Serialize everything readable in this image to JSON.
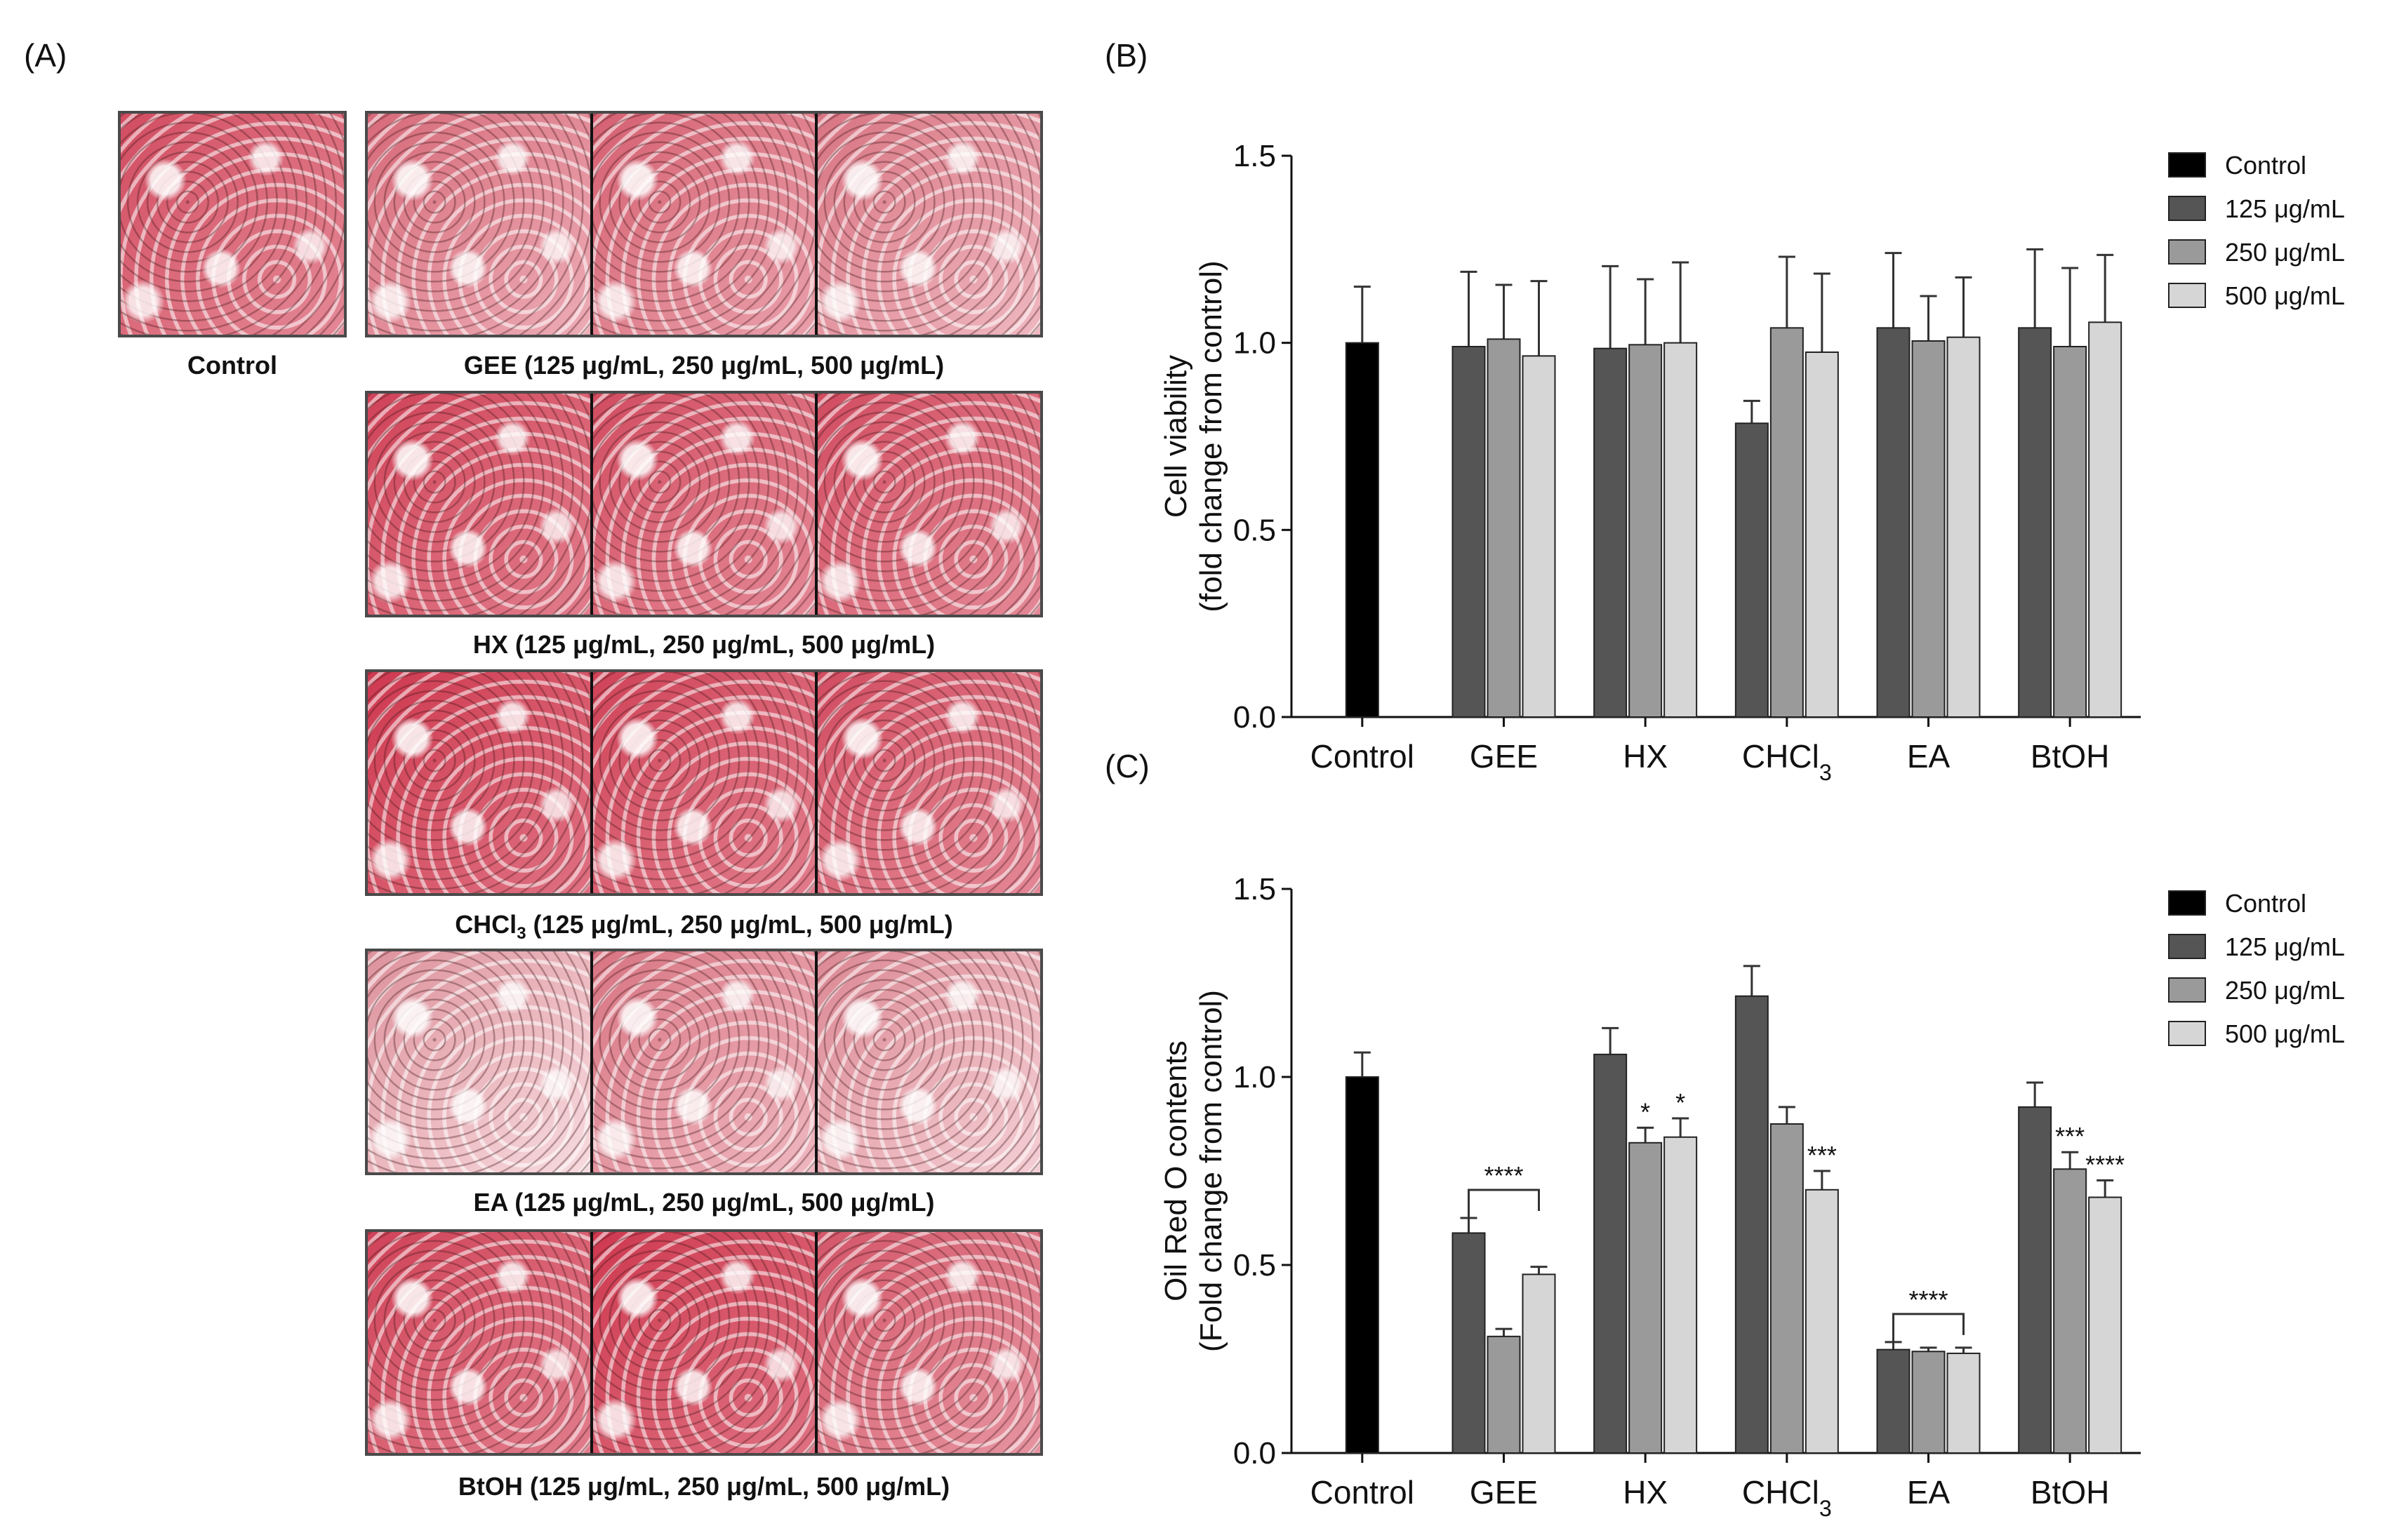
{
  "panels": {
    "A": {
      "label": "(A)",
      "control_caption": "Control",
      "rows": [
        {
          "caption": "GEE (125 μg/mL, 250 μg/mL, 500 μg/mL)",
          "stain": [
            0.55,
            0.6,
            0.5
          ]
        },
        {
          "caption": "HX (125 μg/mL, 250 μg/mL, 500 μg/mL)",
          "stain": [
            0.75,
            0.7,
            0.7
          ]
        },
        {
          "caption": "CHCl3 (125 μg/mL, 250 μg/mL, 500 μg/mL)",
          "stain": [
            0.8,
            0.75,
            0.7
          ]
        },
        {
          "caption": "EA (125 μg/mL, 250 μg/mL, 500 μg/mL)",
          "stain": [
            0.35,
            0.5,
            0.4
          ]
        },
        {
          "caption": "BtOH (125 μg/mL, 250 μg/mL, 500 μg/mL)",
          "stain": [
            0.75,
            0.8,
            0.65
          ]
        }
      ],
      "control_stain": 0.7
    },
    "B": {
      "label": "(B)"
    },
    "C": {
      "label": "(C)"
    }
  },
  "colors": {
    "control": "#000000",
    "c125": "#555555",
    "c250": "#9a9a9a",
    "c500": "#d6d6d6",
    "stain_red": "#c8102e",
    "stain_light": "#e8d8d8"
  },
  "chart_data": [
    {
      "type": "bar",
      "panel": "B",
      "ylabel": "Cell viability",
      "ylabel2": "(fold change from control)",
      "xlabel": "",
      "ylim": [
        0,
        1.5
      ],
      "yticks": [
        "0.0",
        "0.5",
        "1.0",
        "1.5"
      ],
      "categories": [
        "Control",
        "GEE",
        "HX",
        "CHCl3",
        "EA",
        "BtOH"
      ],
      "legend": [
        "Control",
        "125 μg/mL",
        "250 μg/mL",
        "500 μg/mL"
      ],
      "legend_position": "top-right",
      "series": [
        {
          "name": "Control",
          "values": [
            1.0,
            null,
            null,
            null,
            null,
            null
          ],
          "errors": [
            0.15,
            null,
            null,
            null,
            null,
            null
          ]
        },
        {
          "name": "125 μg/mL",
          "values": [
            null,
            0.99,
            0.985,
            0.785,
            1.04,
            1.04
          ],
          "errors": [
            null,
            0.2,
            0.22,
            0.06,
            0.2,
            0.21
          ]
        },
        {
          "name": "250 μg/mL",
          "values": [
            null,
            1.01,
            0.995,
            1.04,
            1.005,
            0.99
          ],
          "errors": [
            null,
            0.145,
            0.175,
            0.19,
            0.12,
            0.21
          ]
        },
        {
          "name": "500 μg/mL",
          "values": [
            null,
            0.965,
            1.0,
            0.975,
            1.015,
            1.055
          ],
          "errors": [
            null,
            0.2,
            0.215,
            0.21,
            0.16,
            0.18
          ]
        }
      ],
      "annotations": []
    },
    {
      "type": "bar",
      "panel": "C",
      "ylabel": "Oil Red O contents",
      "ylabel2": "(Fold change from control)",
      "xlabel": "",
      "ylim": [
        0,
        1.5
      ],
      "yticks": [
        "0.0",
        "0.5",
        "1.0",
        "1.5"
      ],
      "categories": [
        "Control",
        "GEE",
        "HX",
        "CHCl3",
        "EA",
        "BtOH"
      ],
      "legend": [
        "Control",
        "125 μg/mL",
        "250 μg/mL",
        "500 μg/mL"
      ],
      "legend_position": "top-right",
      "series": [
        {
          "name": "Control",
          "values": [
            1.0,
            null,
            null,
            null,
            null,
            null
          ],
          "errors": [
            0.065,
            null,
            null,
            null,
            null,
            null
          ]
        },
        {
          "name": "125 μg/mL",
          "values": [
            null,
            0.585,
            1.06,
            1.215,
            0.275,
            0.92
          ],
          "errors": [
            null,
            0.04,
            0.07,
            0.08,
            0.02,
            0.065
          ]
        },
        {
          "name": "250 μg/mL",
          "values": [
            null,
            0.31,
            0.825,
            0.875,
            0.27,
            0.755
          ],
          "errors": [
            null,
            0.02,
            0.04,
            0.045,
            0.01,
            0.045
          ]
        },
        {
          "name": "500 μg/mL",
          "values": [
            null,
            0.475,
            0.84,
            0.7,
            0.265,
            0.68
          ],
          "errors": [
            null,
            0.02,
            0.05,
            0.05,
            0.015,
            0.045
          ]
        }
      ],
      "annotations": [
        {
          "text": "****",
          "category": 1,
          "bracket": true
        },
        {
          "text": "*",
          "category": 2,
          "series": 2
        },
        {
          "text": "*",
          "category": 2,
          "series": 3
        },
        {
          "text": "***",
          "category": 3,
          "series": 3
        },
        {
          "text": "****",
          "category": 4,
          "bracket": true
        },
        {
          "text": "***",
          "category": 5,
          "series": 2
        },
        {
          "text": "****",
          "category": 5,
          "series": 3
        }
      ]
    }
  ]
}
